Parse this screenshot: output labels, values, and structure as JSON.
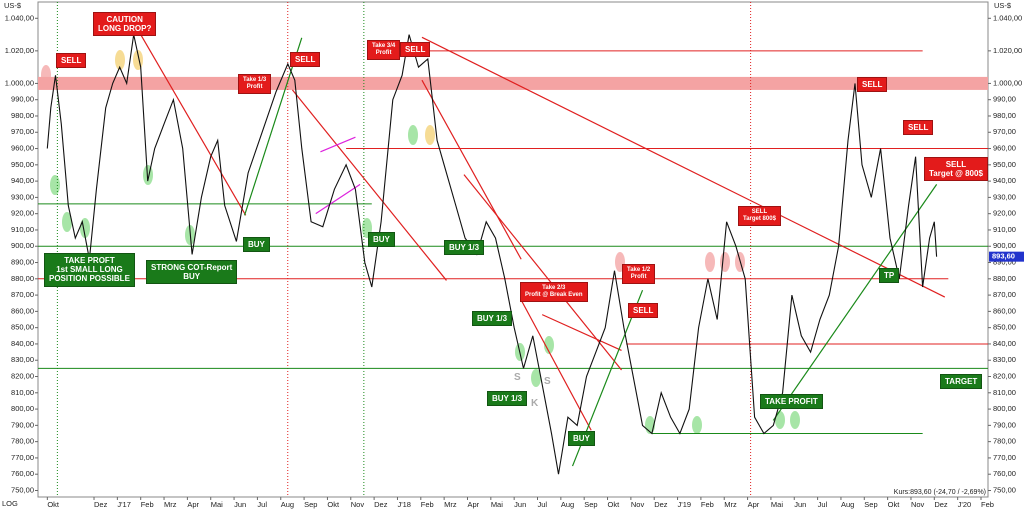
{
  "chart_data": {
    "type": "line",
    "y_unit": "US-$",
    "scale_label": "LOG",
    "footer": "Kurs:893,60 (-24,70 / -2,69%)",
    "last_value_label": "893,60",
    "last_value_color": "#2233cc",
    "xlim": [
      -0.4,
      40.3
    ],
    "ylim": [
      746,
      1050
    ],
    "xticks": [
      {
        "value": 0,
        "label": "Okt"
      },
      {
        "value": 2,
        "label": "Dez"
      },
      {
        "value": 3,
        "label": "J'17"
      },
      {
        "value": 4,
        "label": "Feb"
      },
      {
        "value": 5,
        "label": "Mrz"
      },
      {
        "value": 6,
        "label": "Apr"
      },
      {
        "value": 7,
        "label": "Mai"
      },
      {
        "value": 8,
        "label": "Jun"
      },
      {
        "value": 9,
        "label": "Jul"
      },
      {
        "value": 10,
        "label": "Aug"
      },
      {
        "value": 11,
        "label": "Sep"
      },
      {
        "value": 12,
        "label": "Okt"
      },
      {
        "value": 13,
        "label": "Nov"
      },
      {
        "value": 14,
        "label": "Dez"
      },
      {
        "value": 15,
        "label": "J'18"
      },
      {
        "value": 16,
        "label": "Feb"
      },
      {
        "value": 17,
        "label": "Mrz"
      },
      {
        "value": 18,
        "label": "Apr"
      },
      {
        "value": 19,
        "label": "Mai"
      },
      {
        "value": 20,
        "label": "Jun"
      },
      {
        "value": 21,
        "label": "Jul"
      },
      {
        "value": 22,
        "label": "Aug"
      },
      {
        "value": 23,
        "label": "Sep"
      },
      {
        "value": 24,
        "label": "Okt"
      },
      {
        "value": 25,
        "label": "Nov"
      },
      {
        "value": 26,
        "label": "Dez"
      },
      {
        "value": 27,
        "label": "J'19"
      },
      {
        "value": 28,
        "label": "Feb"
      },
      {
        "value": 29,
        "label": "Mrz"
      },
      {
        "value": 30,
        "label": "Apr"
      },
      {
        "value": 31,
        "label": "Mai"
      },
      {
        "value": 32,
        "label": "Jun"
      },
      {
        "value": 33,
        "label": "Jul"
      },
      {
        "value": 34,
        "label": "Aug"
      },
      {
        "value": 35,
        "label": "Sep"
      },
      {
        "value": 36,
        "label": "Okt"
      },
      {
        "value": 37,
        "label": "Nov"
      },
      {
        "value": 38,
        "label": "Dez"
      },
      {
        "value": 39,
        "label": "J'20"
      },
      {
        "value": 40,
        "label": "Feb"
      }
    ],
    "yticks": [
      {
        "value": 750,
        "label": "750,00"
      },
      {
        "value": 760,
        "label": "760,00"
      },
      {
        "value": 770,
        "label": "770,00"
      },
      {
        "value": 780,
        "label": "780,00"
      },
      {
        "value": 790,
        "label": "790,00"
      },
      {
        "value": 800,
        "label": "800,00"
      },
      {
        "value": 810,
        "label": "810,00"
      },
      {
        "value": 820,
        "label": "820,00"
      },
      {
        "value": 830,
        "label": "830,00"
      },
      {
        "value": 840,
        "label": "840,00"
      },
      {
        "value": 850,
        "label": "850,00"
      },
      {
        "value": 860,
        "label": "860,00"
      },
      {
        "value": 870,
        "label": "870,00"
      },
      {
        "value": 880,
        "label": "880,00"
      },
      {
        "value": 890,
        "label": "890,00"
      },
      {
        "value": 900,
        "label": "900,00"
      },
      {
        "value": 910,
        "label": "910,00"
      },
      {
        "value": 920,
        "label": "920,00"
      },
      {
        "value": 930,
        "label": "930,00"
      },
      {
        "value": 940,
        "label": "940,00"
      },
      {
        "value": 950,
        "label": "950,00"
      },
      {
        "value": 960,
        "label": "960,00"
      },
      {
        "value": 970,
        "label": "970,00"
      },
      {
        "value": 980,
        "label": "980,00"
      },
      {
        "value": 990,
        "label": "990,00"
      },
      {
        "value": 1000,
        "label": "1.000,00"
      },
      {
        "value": 1020,
        "label": "1.020,00"
      },
      {
        "value": 1040,
        "label": "1.040,00"
      }
    ],
    "series": [
      {
        "color": "#111111",
        "x": [
          0,
          0.15,
          0.35,
          0.6,
          0.9,
          1.2,
          1.5,
          1.8,
          2.1,
          2.5,
          2.8,
          3.1,
          3.4,
          3.7,
          4.0,
          4.3,
          4.6,
          5.0,
          5.4,
          5.8,
          6.2,
          6.6,
          7.0,
          7.3,
          7.6,
          8.1,
          8.6,
          9.2,
          9.8,
          10.3,
          10.6,
          10.9,
          11.3,
          11.8,
          12.3,
          12.8,
          13.2,
          13.6,
          13.9,
          14.3,
          14.8,
          15.2,
          15.5,
          15.9,
          16.3,
          16.7,
          17.0,
          17.5,
          17.9,
          18.4,
          18.8,
          19.2,
          19.6,
          20.0,
          20.4,
          20.8,
          21.2,
          21.6,
          21.9,
          22.3,
          22.7,
          23.1,
          23.5,
          23.9,
          24.3,
          24.7,
          25.1,
          25.5,
          25.9,
          26.3,
          26.7,
          27.1,
          27.5,
          27.9,
          28.3,
          28.7,
          29.1,
          29.5,
          29.9,
          30.3,
          30.7,
          31.1,
          31.5,
          31.9,
          32.3,
          32.7,
          33.1,
          33.5,
          33.9,
          34.3,
          34.6,
          34.9,
          35.3,
          35.7,
          36.1,
          36.5,
          36.9,
          37.2,
          37.5,
          37.8,
          38.0,
          38.1
        ],
        "values": [
          960,
          985,
          1005,
          975,
          925,
          905,
          915,
          892,
          935,
          985,
          1000,
          1010,
          1000,
          1030,
          1010,
          940,
          960,
          975,
          990,
          960,
          895,
          930,
          955,
          965,
          925,
          903,
          945,
          970,
          995,
          1012,
          1002,
          960,
          915,
          912,
          935,
          950,
          935,
          890,
          875,
          915,
          990,
          1005,
          1030,
          1010,
          1015,
          965,
          950,
          925,
          905,
          895,
          915,
          905,
          880,
          850,
          825,
          845,
          815,
          785,
          760,
          795,
          790,
          820,
          835,
          850,
          885,
          850,
          820,
          790,
          785,
          810,
          795,
          785,
          800,
          850,
          880,
          855,
          915,
          900,
          880,
          795,
          785,
          790,
          810,
          870,
          845,
          835,
          855,
          870,
          900,
          965,
          1000,
          950,
          930,
          960,
          905,
          880,
          925,
          955,
          875,
          905,
          915,
          893.6
        ]
      }
    ],
    "bands": [
      {
        "from": 996,
        "to": 1004,
        "color": "#f4a3a3"
      }
    ],
    "hlines": [
      {
        "value": 1020,
        "color": "#e02020",
        "x": [
          13.7,
          37.5
        ]
      },
      {
        "value": 960,
        "color": "#e02020",
        "x": [
          12.8,
          40.3
        ]
      },
      {
        "value": 880,
        "color": "#e02020",
        "x": [
          -0.4,
          38.6
        ]
      },
      {
        "value": 840,
        "color": "#e02020",
        "x": [
          24.8,
          40.3
        ]
      },
      {
        "value": 900,
        "color": "#1a8a1a",
        "x": [
          -0.4,
          40.3
        ]
      },
      {
        "value": 926,
        "color": "#1a8a1a",
        "x": [
          -0.4,
          13.9
        ]
      },
      {
        "value": 825,
        "color": "#1a8a1a",
        "x": [
          -0.4,
          40.3
        ]
      },
      {
        "value": 785,
        "color": "#1a8a1a",
        "x": [
          25.9,
          37.5
        ]
      }
    ],
    "vlines": [
      {
        "x": 0.43,
        "color": "#1a8a1a"
      },
      {
        "x": 13.56,
        "color": "#1a8a1a"
      },
      {
        "x": 10.3,
        "color": "#e02020"
      },
      {
        "x": 30.13,
        "color": "#e02020"
      }
    ],
    "trendlines": [
      {
        "color": "#e02020",
        "points": [
          [
            16.05,
            1028.3
          ],
          [
            38.45,
            868.8
          ]
        ]
      },
      {
        "color": "#e02020",
        "points": [
          [
            4.0,
            1030
          ],
          [
            8.5,
            919
          ]
        ]
      },
      {
        "color": "#e02020",
        "points": [
          [
            10.5,
            996
          ],
          [
            17.1,
            879
          ]
        ]
      },
      {
        "color": "#e02020",
        "points": [
          [
            16.05,
            1002
          ],
          [
            20.3,
            892
          ]
        ]
      },
      {
        "color": "#e02020",
        "points": [
          [
            17.85,
            944
          ],
          [
            24.6,
            824
          ]
        ]
      },
      {
        "color": "#e02020",
        "points": [
          [
            21.2,
            858
          ],
          [
            24.6,
            836
          ]
        ]
      },
      {
        "color": "#e02020",
        "points": [
          [
            20.3,
            867
          ],
          [
            23.3,
            787
          ]
        ]
      },
      {
        "color": "#1a8a1a",
        "points": [
          [
            8.45,
            919
          ],
          [
            10.9,
            1028
          ]
        ]
      },
      {
        "color": "#1a8a1a",
        "points": [
          [
            22.5,
            765
          ],
          [
            25.5,
            873
          ]
        ]
      },
      {
        "color": "#1a8a1a",
        "points": [
          [
            31.1,
            793
          ],
          [
            38.1,
            938
          ]
        ]
      },
      {
        "color": "#dd22dd",
        "points": [
          [
            11.7,
            958
          ],
          [
            13.2,
            967
          ]
        ]
      },
      {
        "color": "#dd22dd",
        "points": [
          [
            11.5,
            920
          ],
          [
            13.4,
            938
          ]
        ]
      }
    ],
    "annotations": [
      {
        "text": "SELL",
        "color": "#e31b1b"
      },
      {
        "text": "CAUTION\nLONG DROP?",
        "color": "#e31b1b"
      },
      {
        "text": "Take 1/3\nProfit",
        "color": "#e31b1b"
      },
      {
        "text": "SELL",
        "color": "#e31b1b"
      },
      {
        "text": "Take 3/4\nProfit",
        "color": "#e31b1b"
      },
      {
        "text": "SELL",
        "color": "#e31b1b"
      },
      {
        "text": "SELL",
        "color": "#e31b1b"
      },
      {
        "text": "SELL",
        "color": "#e31b1b"
      },
      {
        "text": "SELL\nTarget @ 800$",
        "color": "#e31b1b"
      },
      {
        "text": "SELL\nTarget 800$",
        "color": "#e31b1b"
      },
      {
        "text": "Take 2/3\nProfit @ Break Even",
        "color": "#e31b1b"
      },
      {
        "text": "Take 1/2\nProfit",
        "color": "#e31b1b"
      },
      {
        "text": "SELL",
        "color": "#e31b1b"
      },
      {
        "text": "TAKE PROFT\n1st SMALL LONG\nPOSITION POSSIBLE",
        "color": "#1a7a1a"
      },
      {
        "text": "STRONG COT-Report\nBUY",
        "color": "#1a7a1a"
      },
      {
        "text": "BUY",
        "color": "#1a7a1a"
      },
      {
        "text": "BUY",
        "color": "#1a7a1a"
      },
      {
        "text": "BUY 1/3",
        "color": "#1a7a1a"
      },
      {
        "text": "BUY 1/3",
        "color": "#1a7a1a"
      },
      {
        "text": "BUY 1/3",
        "color": "#1a7a1a"
      },
      {
        "text": "BUY",
        "color": "#1a7a1a"
      },
      {
        "text": "TAKE PROFIT",
        "color": "#1a7a1a"
      },
      {
        "text": "TP",
        "color": "#1a7a1a"
      },
      {
        "text": "TARGET",
        "color": "#1a7a1a"
      }
    ],
    "marker_letters": [
      "S",
      "S",
      "K"
    ]
  }
}
